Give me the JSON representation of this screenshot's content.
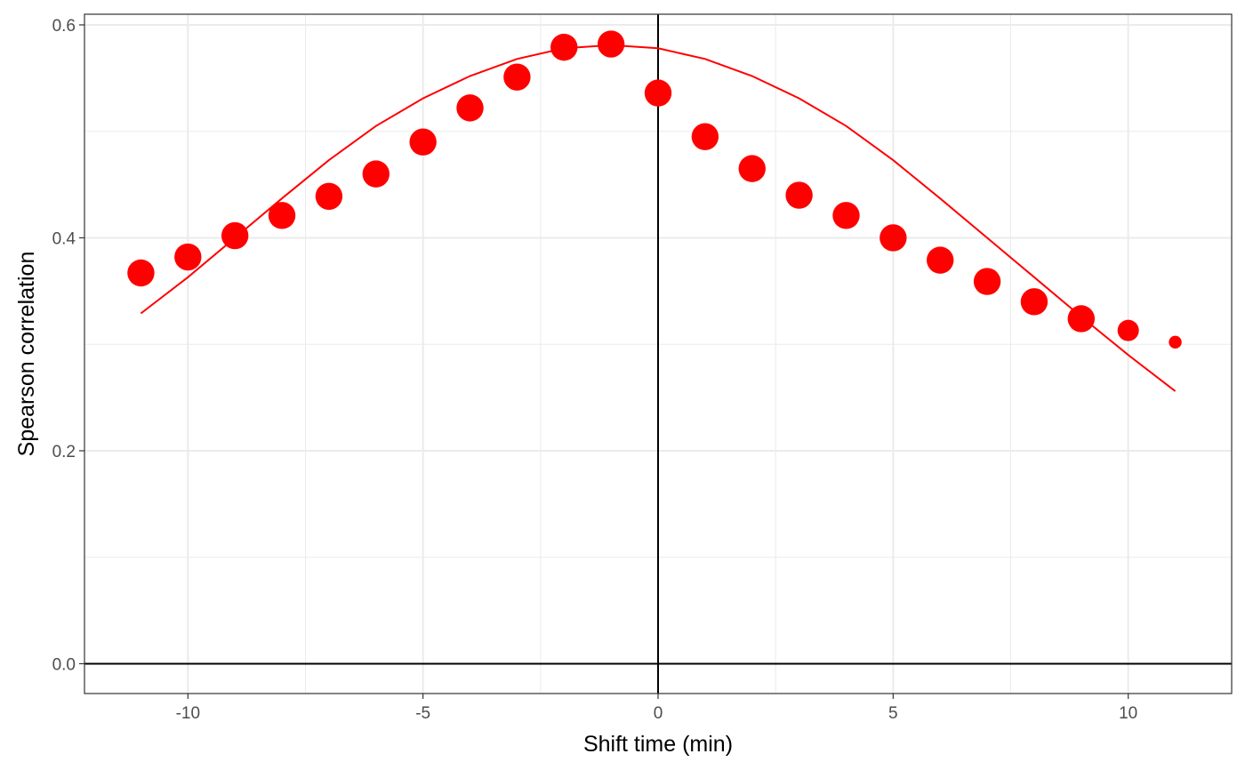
{
  "chart_data": {
    "type": "scatter",
    "title": "",
    "xlabel": "Shift time (min)",
    "ylabel": "Spearson correlation",
    "xlim": [
      -12.2,
      12.2
    ],
    "ylim": [
      -0.028,
      0.61
    ],
    "x_ticks": [
      -10,
      -5,
      0,
      5,
      10
    ],
    "x_tick_labels": [
      "-10",
      "-5",
      "0",
      "5",
      "10"
    ],
    "y_ticks": [
      0.0,
      0.2,
      0.4,
      0.6
    ],
    "y_tick_labels": [
      "0.0",
      "0.2",
      "0.4",
      "0.6"
    ],
    "grid": true,
    "reference_lines": {
      "x": 0,
      "y": 0
    },
    "colors": {
      "series": "#ff0000",
      "grid": "#ebebeb",
      "reference": "#000000"
    },
    "series": [
      {
        "type": "scatter",
        "x": [
          -11,
          -10,
          -9,
          -8,
          -7,
          -6,
          -5,
          -4,
          -3,
          -2,
          -1,
          0,
          1,
          2,
          3,
          4,
          5,
          6,
          7,
          8,
          9,
          10,
          11
        ],
        "y": [
          0.367,
          0.382,
          0.402,
          0.421,
          0.439,
          0.46,
          0.49,
          0.522,
          0.551,
          0.579,
          0.582,
          0.536,
          0.495,
          0.465,
          0.44,
          0.421,
          0.4,
          0.379,
          0.359,
          0.34,
          0.324,
          0.313,
          0.302
        ],
        "point_weight": [
          0.95,
          0.95,
          0.95,
          0.95,
          0.95,
          0.95,
          0.95,
          0.95,
          0.95,
          0.95,
          0.95,
          0.95,
          0.95,
          0.95,
          0.95,
          0.95,
          0.95,
          0.95,
          0.95,
          0.95,
          0.95,
          0.75,
          0.45
        ]
      },
      {
        "type": "line",
        "x": [
          -11,
          -10,
          -9,
          -8,
          -7,
          -6,
          -5,
          -4,
          -3,
          -2,
          -1,
          0,
          1,
          2,
          3,
          4,
          5,
          6,
          7,
          8,
          9,
          10,
          11
        ],
        "y": [
          0.329,
          0.363,
          0.4,
          0.437,
          0.473,
          0.505,
          0.531,
          0.552,
          0.568,
          0.578,
          0.581,
          0.578,
          0.568,
          0.552,
          0.531,
          0.505,
          0.473,
          0.437,
          0.4,
          0.363,
          0.326,
          0.29,
          0.256
        ]
      }
    ]
  }
}
